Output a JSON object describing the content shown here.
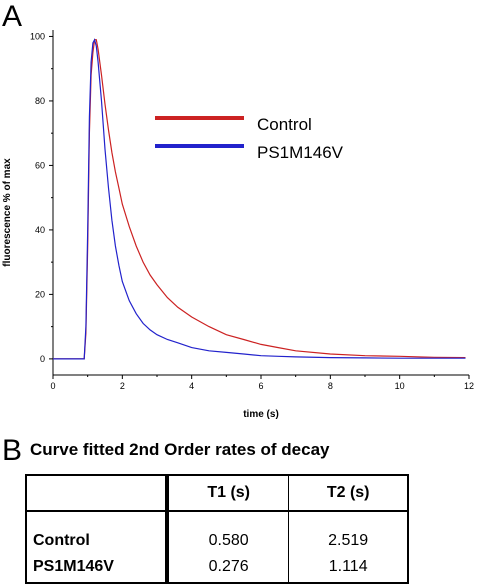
{
  "panels": {
    "a_label": "A",
    "b_label": "B"
  },
  "colors": {
    "control": "#cc2222",
    "ps1": "#2222cc",
    "axis": "#000000"
  },
  "chart_data": {
    "type": "line",
    "title": "",
    "xlabel": "time (s)",
    "ylabel": "fluorescence % of max",
    "xlim": [
      0,
      12
    ],
    "ylim": [
      -5,
      102
    ],
    "xticks": [
      0,
      2,
      4,
      6,
      8,
      10,
      12
    ],
    "yticks": [
      0,
      20,
      40,
      60,
      80,
      100
    ],
    "grid": false,
    "legend_position": "top-right",
    "series": [
      {
        "name": "Control",
        "color": "#cc2222",
        "x": [
          0,
          0.9,
          0.95,
          1.0,
          1.05,
          1.1,
          1.15,
          1.2,
          1.25,
          1.3,
          1.4,
          1.5,
          1.6,
          1.7,
          1.8,
          1.9,
          2.0,
          2.2,
          2.4,
          2.6,
          2.8,
          3.0,
          3.3,
          3.6,
          4.0,
          4.5,
          5.0,
          5.5,
          6.0,
          6.5,
          7.0,
          8.0,
          9.0,
          10.0,
          11.0,
          11.9
        ],
        "y": [
          0,
          0,
          8,
          35,
          70,
          88,
          95,
          99,
          99,
          96,
          88,
          79,
          71,
          64,
          58,
          53,
          48,
          41,
          35,
          30,
          26,
          23,
          19,
          16,
          13,
          10,
          7.5,
          6,
          4.5,
          3.5,
          2.5,
          1.5,
          1,
          0.8,
          0.5,
          0.4
        ]
      },
      {
        "name": "PS1M146V",
        "color": "#2222cc",
        "x": [
          0,
          0.9,
          0.95,
          1.0,
          1.05,
          1.1,
          1.15,
          1.2,
          1.25,
          1.3,
          1.4,
          1.5,
          1.6,
          1.7,
          1.8,
          1.9,
          2.0,
          2.2,
          2.4,
          2.6,
          2.8,
          3.0,
          3.3,
          3.6,
          4.0,
          4.5,
          5.0,
          5.5,
          6.0,
          6.5,
          7.0,
          8.0,
          9.0,
          10.0,
          11.0,
          11.9
        ],
        "y": [
          0,
          0,
          10,
          40,
          75,
          92,
          98,
          99,
          97,
          92,
          80,
          65,
          53,
          43,
          35,
          29,
          24,
          18,
          14,
          11,
          9,
          7.5,
          6,
          5,
          3.5,
          2.5,
          2,
          1.5,
          1,
          0.8,
          0.6,
          0.4,
          0.3,
          0.2,
          0.2,
          0.2
        ]
      }
    ]
  },
  "table": {
    "title": "Curve fitted 2nd Order rates of decay",
    "headers": [
      "",
      "T1 (s)",
      "T2 (s)"
    ],
    "rows": [
      {
        "label": "Control",
        "t1": "0.580",
        "t2": "2.519"
      },
      {
        "label": "PS1M146V",
        "t1": "0.276",
        "t2": "1.114"
      }
    ]
  }
}
